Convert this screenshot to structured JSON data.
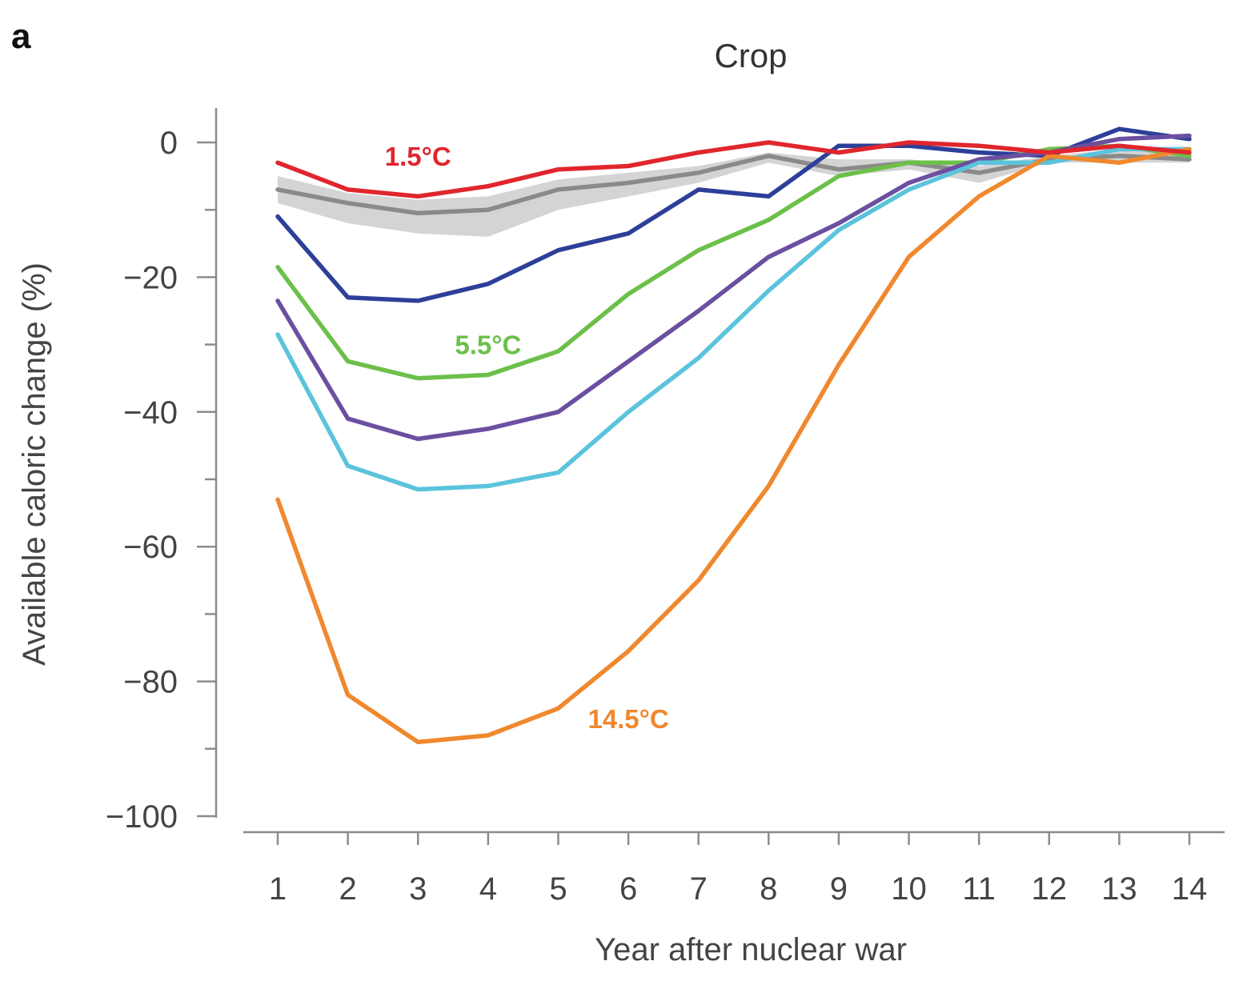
{
  "panel_label": "a",
  "chart_data": {
    "type": "line",
    "title": "Crop",
    "xlabel": "Year after nuclear war",
    "ylabel": "Available caloric change (%)",
    "xlim": [
      1,
      14
    ],
    "ylim": [
      -100,
      5
    ],
    "x": [
      1,
      2,
      3,
      4,
      5,
      6,
      7,
      8,
      9,
      10,
      11,
      12,
      13,
      14
    ],
    "x_ticks": [
      "1",
      "2",
      "3",
      "4",
      "5",
      "6",
      "7",
      "8",
      "9",
      "10",
      "11",
      "12",
      "13",
      "14"
    ],
    "y_ticks": [
      0,
      -20,
      -40,
      -60,
      -80,
      -100
    ],
    "y_tick_labels": [
      "0",
      "−20",
      "−40",
      "−60",
      "−80",
      "−100"
    ],
    "y_minor_ticks": [
      -10,
      -30,
      -50,
      -70,
      -90
    ],
    "grid": false,
    "band": {
      "color": "#d4d4d4",
      "upper": [
        -5,
        -7.5,
        -8.5,
        -8,
        -5.5,
        -4.5,
        -3.5,
        -1.5,
        -2.5,
        -2.5,
        -3.5,
        -2,
        -1,
        -1.5
      ],
      "lower": [
        -9,
        -12,
        -13.5,
        -14,
        -10,
        -8,
        -6,
        -3,
        -5,
        -4,
        -6,
        -3,
        -3,
        -3
      ]
    },
    "series": [
      {
        "color": "#8a8a8a",
        "values": [
          -7,
          -9,
          -10.5,
          -10,
          -7,
          -6,
          -4.5,
          -2,
          -4,
          -3,
          -4.5,
          -2.5,
          -2,
          -2.5
        ]
      },
      {
        "color": "#2e3f99",
        "values": [
          -11,
          -23,
          -23.5,
          -21,
          -16,
          -13.5,
          -7,
          -8,
          -0.5,
          -0.5,
          -1.5,
          -2,
          2,
          0.5
        ]
      },
      {
        "color": "#6cc04a",
        "values": [
          -18.5,
          -32.5,
          -35,
          -34.5,
          -31,
          -22.5,
          -16,
          -11.5,
          -5,
          -3,
          -3,
          -1,
          -0.5,
          -2
        ]
      },
      {
        "color": "#6b4fa0",
        "values": [
          -23.5,
          -41,
          -44,
          -42.5,
          -40,
          -32.5,
          -25,
          -17,
          -12,
          -6,
          -2.5,
          -1.5,
          0.5,
          1
        ]
      },
      {
        "color": "#5bc3dc",
        "values": [
          -28.5,
          -48,
          -51.5,
          -51,
          -49,
          -40,
          -32,
          -22,
          -13,
          -7,
          -3,
          -3,
          -1,
          -1
        ]
      },
      {
        "color": "#f0882e",
        "values": [
          -53,
          -82,
          -89,
          -88,
          -84,
          -75.5,
          -65,
          -51,
          -33,
          -17,
          -8,
          -2,
          -3,
          -1
        ]
      },
      {
        "color": "#e0262d",
        "values": [
          -3,
          -7,
          -8,
          -6.5,
          -4,
          -3.5,
          -1.5,
          0,
          -1.5,
          0,
          -0.5,
          -1.5,
          -0.5,
          -1.5
        ]
      }
    ],
    "annotations": [
      {
        "text": "1.5°C",
        "color": "#e0262d",
        "x": 3,
        "y": -2
      },
      {
        "text": "5.5°C",
        "color": "#6cc04a",
        "x": 4,
        "y": -30
      },
      {
        "text": "14.5°C",
        "color": "#f0882e",
        "x": 6,
        "y": -85.5
      }
    ]
  }
}
